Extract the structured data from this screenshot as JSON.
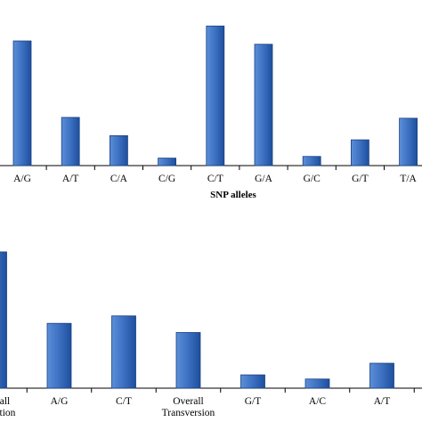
{
  "colors": {
    "bar_fill_start": "#5b8fd8",
    "bar_fill_mid": "#3f73c4",
    "bar_fill_end": "#1f4f9e",
    "bar_stroke": "#1a3f80",
    "axis": "#000000"
  },
  "chart_data": [
    {
      "type": "bar",
      "title": "",
      "xlabel": "SNP alleles",
      "ylabel": "",
      "categories": [
        "A/G",
        "A/T",
        "C/A",
        "C/G",
        "C/T",
        "G/A",
        "G/C",
        "G/T",
        "T/A"
      ],
      "values": [
        150,
        58,
        36,
        9,
        168,
        146,
        11,
        31,
        57
      ],
      "ylim": [
        0,
        180
      ],
      "grid": false,
      "legend": "none"
    },
    {
      "type": "bar",
      "title": "",
      "xlabel": "",
      "ylabel": "",
      "categories": [
        "Overall Transition",
        "A/G",
        "C/T",
        "Overall Transversion",
        "G/T",
        "A/C",
        "A/T"
      ],
      "tick_label_lines": [
        [
          "Overall",
          "Transition"
        ],
        [
          "A/G"
        ],
        [
          "C/T"
        ],
        [
          "Overall",
          "Transversion"
        ],
        [
          "G/T"
        ],
        [
          "A/C"
        ],
        [
          "A/T"
        ]
      ],
      "values": [
        164,
        78,
        87,
        67,
        16,
        11,
        30
      ],
      "ylim": [
        0,
        180
      ],
      "grid": false,
      "legend": "none"
    }
  ]
}
